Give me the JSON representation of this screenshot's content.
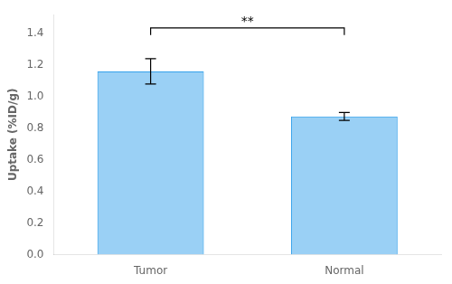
{
  "chart_data": {
    "type": "bar",
    "categories": [
      "Tumor",
      "Normal"
    ],
    "values": [
      1.16,
      0.875
    ],
    "errors": [
      0.08,
      0.025
    ],
    "ylabel": "Uptake (%ID/g)",
    "ylim": [
      0.0,
      1.52
    ],
    "yticks": [
      {
        "value": 0.0,
        "label": "0.0"
      },
      0.2,
      0.4,
      0.6,
      0.8,
      {
        "value": 1.0,
        "label": "1.0"
      },
      1.2,
      1.4
    ],
    "grid": false,
    "annotations": [
      {
        "text": "**",
        "from": "Tumor",
        "to": "Normal",
        "y": 1.435,
        "tip_y": 1.39,
        "text_y": 1.43
      }
    ]
  }
}
